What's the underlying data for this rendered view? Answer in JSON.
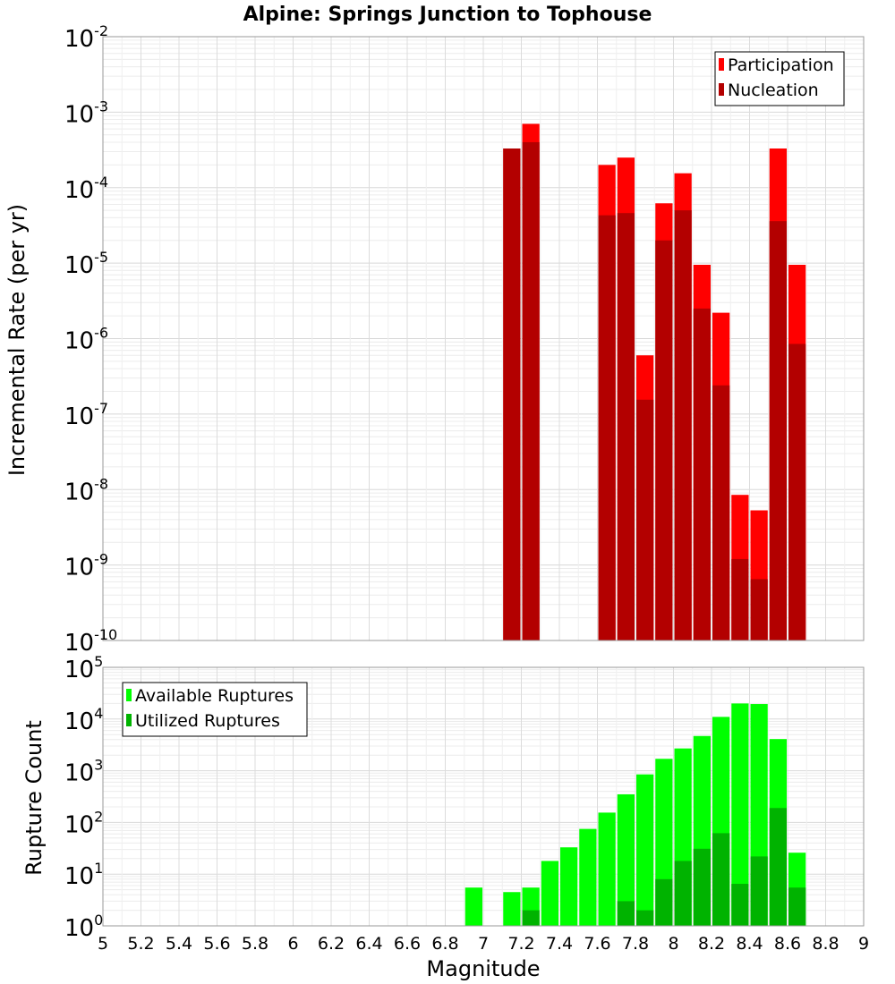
{
  "chart_data": {
    "title": "Alpine: Springs Junction to Tophouse",
    "xlabel": "Magnitude",
    "xlim": [
      5,
      9
    ],
    "xticks": [
      "5",
      "5.2",
      "5.4",
      "5.6",
      "5.8",
      "6",
      "6.2",
      "6.4",
      "6.6",
      "6.8",
      "7",
      "7.2",
      "7.4",
      "7.6",
      "7.8",
      "8",
      "8.2",
      "8.4",
      "8.6",
      "8.8",
      "9"
    ],
    "bin_width": 0.1,
    "grid": true,
    "panels": [
      {
        "type": "bar",
        "scale": "log",
        "ylabel": "Incremental Rate (per yr)",
        "ylim_exp": [
          -10,
          -2
        ],
        "legend": {
          "placement": "top-right",
          "entries": [
            "Participation",
            "Nucleation"
          ]
        },
        "series": [
          {
            "name": "Participation",
            "color": "#ff0000",
            "points": [
              [
                7.15,
                0.00033
              ],
              [
                7.25,
                0.0007
              ],
              [
                7.65,
                0.0002
              ],
              [
                7.75,
                0.00025
              ],
              [
                7.85,
                6e-07
              ],
              [
                7.95,
                6.2e-05
              ],
              [
                8.05,
                0.000155
              ],
              [
                8.15,
                9.5e-06
              ],
              [
                8.25,
                2.2e-06
              ],
              [
                8.35,
                8.5e-09
              ],
              [
                8.45,
                5.3e-09
              ],
              [
                8.55,
                0.00033
              ],
              [
                8.65,
                9.5e-06
              ]
            ]
          },
          {
            "name": "Nucleation",
            "color": "#b30000",
            "points": [
              [
                7.15,
                0.00033
              ],
              [
                7.25,
                0.0004
              ],
              [
                7.65,
                4.3e-05
              ],
              [
                7.75,
                4.6e-05
              ],
              [
                7.85,
                1.55e-07
              ],
              [
                7.95,
                2e-05
              ],
              [
                8.05,
                5e-05
              ],
              [
                8.15,
                2.5e-06
              ],
              [
                8.25,
                2.4e-07
              ],
              [
                8.35,
                1.2e-09
              ],
              [
                8.45,
                6.5e-10
              ],
              [
                8.55,
                3.6e-05
              ],
              [
                8.65,
                8.5e-07
              ]
            ]
          }
        ]
      },
      {
        "type": "bar",
        "scale": "log",
        "ylabel": "Rupture Count",
        "ylim_exp": [
          0,
          5
        ],
        "legend": {
          "placement": "top-left",
          "entries": [
            "Available Ruptures",
            "Utilized Ruptures"
          ]
        },
        "series": [
          {
            "name": "Available Ruptures",
            "color": "#00ff00",
            "points": [
              [
                6.95,
                5.5
              ],
              [
                7.15,
                4.5
              ],
              [
                7.25,
                5.5
              ],
              [
                7.35,
                18
              ],
              [
                7.45,
                33
              ],
              [
                7.55,
                75
              ],
              [
                7.65,
                155
              ],
              [
                7.75,
                350
              ],
              [
                7.85,
                850
              ],
              [
                7.95,
                1700
              ],
              [
                8.05,
                2700
              ],
              [
                8.15,
                4700
              ],
              [
                8.25,
                11000
              ],
              [
                8.35,
                20000
              ],
              [
                8.45,
                19500
              ],
              [
                8.55,
                4100
              ],
              [
                8.65,
                26
              ]
            ]
          },
          {
            "name": "Utilized Ruptures",
            "color": "#00b300",
            "points": [
              [
                7.15,
                1
              ],
              [
                7.25,
                2
              ],
              [
                7.65,
                1
              ],
              [
                7.75,
                3
              ],
              [
                7.85,
                2
              ],
              [
                7.95,
                8
              ],
              [
                8.05,
                18
              ],
              [
                8.15,
                31
              ],
              [
                8.25,
                62
              ],
              [
                8.35,
                6.5
              ],
              [
                8.45,
                22
              ],
              [
                8.55,
                190
              ],
              [
                8.65,
                5.5
              ]
            ]
          }
        ]
      }
    ]
  }
}
